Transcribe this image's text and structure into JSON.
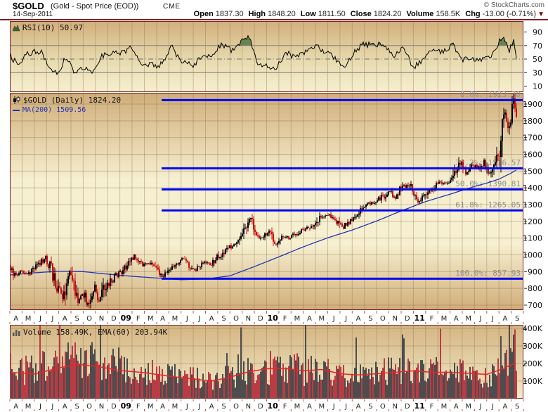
{
  "header": {
    "symbol": "$GOLD",
    "description": "(Gold - Spot Price (EOD))",
    "exchange": "CME",
    "copyright": "© StockCharts.com",
    "date": "14-Sep-2011",
    "quote": [
      {
        "label": "Open",
        "value": "1837.30"
      },
      {
        "label": "High",
        "value": "1848.20"
      },
      {
        "label": "Low",
        "value": "1811.50"
      },
      {
        "label": "Close",
        "value": "1824.20"
      },
      {
        "label": "Volume",
        "value": "158.5K"
      },
      {
        "label": "Chg",
        "value": "-13.00 (-0.71%)",
        "direction": "down"
      }
    ]
  },
  "colors": {
    "maroon": "#7a2323",
    "grid": "rgba(140,110,70,0.38)",
    "tick_red": "#bb5555",
    "fib_blue": "#0008ee",
    "ma_blue": "#2233bb",
    "candle_up": "#000000",
    "candle_down": "#cc0f0f",
    "vol_up": "#4d4d4d",
    "vol_down": "#bb3b44",
    "vol_ema": "#ee2222",
    "rsi_line": "#000000",
    "rsi_band": "#808080",
    "rsi_mid": "#66707a",
    "rsi_green": "#5a7d46",
    "rsi_red": "#9c4f3f",
    "label_gray": "#8e8e8e",
    "axis_text": "#111111"
  },
  "x_axis": {
    "months": [
      "A",
      "M",
      "J",
      "J",
      "A",
      "S",
      "O",
      "N",
      "D",
      "09",
      "F",
      "M",
      "A",
      "M",
      "J",
      "J",
      "A",
      "S",
      "O",
      "N",
      "D",
      "10",
      "F",
      "M",
      "A",
      "M",
      "J",
      "J",
      "A",
      "S",
      "O",
      "N",
      "D",
      "11",
      "F",
      "M",
      "A",
      "M",
      "J",
      "J",
      "A",
      "S"
    ],
    "year_labels": [
      "09",
      "10",
      "11"
    ],
    "span_note": "Apr 2008 - Sep 2011, daily",
    "data_end_month": 41.5
  },
  "chart_data": [
    {
      "type": "line",
      "title": "RSI(10)",
      "label": "RSI(10) 50.97",
      "current": 50.97,
      "overbought": 70,
      "midline": 50,
      "oversold": 30,
      "yticks": [
        90,
        70,
        50,
        30,
        10
      ],
      "ylim": [
        0,
        100
      ],
      "path": [
        [
          0,
          55
        ],
        [
          0.7,
          42
        ],
        [
          1.5,
          58
        ],
        [
          2.5,
          62
        ],
        [
          3.2,
          38
        ],
        [
          4,
          30
        ],
        [
          4.6,
          55
        ],
        [
          5.3,
          28
        ],
        [
          6,
          38
        ],
        [
          6.7,
          30
        ],
        [
          7.5,
          55
        ],
        [
          8.3,
          60
        ],
        [
          9,
          58
        ],
        [
          10,
          68
        ],
        [
          10.7,
          45
        ],
        [
          11.5,
          42
        ],
        [
          12.3,
          40
        ],
        [
          13.2,
          68
        ],
        [
          14,
          48
        ],
        [
          15,
          42
        ],
        [
          15.8,
          55
        ],
        [
          16.6,
          58
        ],
        [
          17.4,
          72
        ],
        [
          18.2,
          62
        ],
        [
          19,
          78
        ],
        [
          19.6,
          82
        ],
        [
          20.3,
          42
        ],
        [
          21,
          40
        ],
        [
          21.8,
          38
        ],
        [
          22.6,
          60
        ],
        [
          23.4,
          52
        ],
        [
          24.2,
          62
        ],
        [
          25,
          68
        ],
        [
          25.8,
          62
        ],
        [
          26.6,
          50
        ],
        [
          27.4,
          36
        ],
        [
          28.2,
          62
        ],
        [
          29,
          72
        ],
        [
          29.8,
          70
        ],
        [
          30.6,
          72
        ],
        [
          31.4,
          55
        ],
        [
          32.2,
          65
        ],
        [
          33,
          38
        ],
        [
          33.8,
          50
        ],
        [
          34.6,
          65
        ],
        [
          35.4,
          60
        ],
        [
          36.2,
          72
        ],
        [
          37,
          48
        ],
        [
          37.8,
          52
        ],
        [
          38.6,
          48
        ],
        [
          39.4,
          55
        ],
        [
          40,
          75
        ],
        [
          40.4,
          85
        ],
        [
          40.8,
          60
        ],
        [
          41.2,
          78
        ],
        [
          41.5,
          51
        ]
      ]
    },
    {
      "type": "candlestick",
      "title": "$GOLD (Daily)",
      "label": "$GOLD (Daily) 1824.20",
      "ma_label": "MA(200) 1509.56",
      "last_close": 1824.2,
      "ma200_current": 1509.56,
      "yticks": [
        1900,
        1800,
        1700,
        1600,
        1500,
        1400,
        1300,
        1200,
        1100,
        1000,
        900,
        800,
        700
      ],
      "ylim": [
        675,
        1967
      ],
      "fib_levels": [
        {
          "pct": "0.0%",
          "value": 1923.7,
          "label": "0.0%: 1923.70"
        },
        {
          "pct": "38.2%",
          "value": 1516.57,
          "label": "38.2%: 1516.57"
        },
        {
          "pct": "50.0%",
          "value": 1390.81,
          "label": "50.0%: 1390.81"
        },
        {
          "pct": "61.8%",
          "value": 1265.05,
          "label": "61.8%: 1265.05"
        },
        {
          "pct": "100.0%",
          "value": 857.93,
          "label": "100.0%: 857.93"
        }
      ],
      "fib_start_month": 12.41,
      "price_path": [
        [
          0,
          935
        ],
        [
          0.4,
          880
        ],
        [
          1.0,
          905
        ],
        [
          1.5,
          885
        ],
        [
          2.2,
          930
        ],
        [
          2.9,
          985
        ],
        [
          3.4,
          910
        ],
        [
          3.9,
          800
        ],
        [
          4.3,
          745
        ],
        [
          4.8,
          905
        ],
        [
          5.2,
          860
        ],
        [
          5.6,
          730
        ],
        [
          5.9,
          780
        ],
        [
          6.4,
          700
        ],
        [
          6.9,
          815
        ],
        [
          7.3,
          715
        ],
        [
          7.8,
          810
        ],
        [
          8.5,
          865
        ],
        [
          9.2,
          905
        ],
        [
          10.2,
          995
        ],
        [
          10.8,
          940
        ],
        [
          11.4,
          955
        ],
        [
          11.9,
          920
        ],
        [
          12.4,
          870
        ],
        [
          13.3,
          925
        ],
        [
          14.1,
          980
        ],
        [
          14.6,
          940
        ],
        [
          15.2,
          910
        ],
        [
          15.9,
          950
        ],
        [
          16.5,
          945
        ],
        [
          17.2,
          1000
        ],
        [
          17.9,
          1045
        ],
        [
          18.6,
          1060
        ],
        [
          19.2,
          1140
        ],
        [
          19.7,
          1215
        ],
        [
          20.1,
          1125
        ],
        [
          20.6,
          1100
        ],
        [
          21.2,
          1135
        ],
        [
          21.7,
          1055
        ],
        [
          22.3,
          1110
        ],
        [
          22.9,
          1100
        ],
        [
          23.6,
          1135
        ],
        [
          24.3,
          1160
        ],
        [
          24.9,
          1185
        ],
        [
          25.4,
          1235
        ],
        [
          26.0,
          1240
        ],
        [
          26.6,
          1215
        ],
        [
          27.2,
          1160
        ],
        [
          27.8,
          1200
        ],
        [
          28.5,
          1245
        ],
        [
          29.2,
          1300
        ],
        [
          29.9,
          1310
        ],
        [
          30.5,
          1345
        ],
        [
          31.0,
          1380
        ],
        [
          31.4,
          1340
        ],
        [
          31.9,
          1385
        ],
        [
          32.5,
          1420
        ],
        [
          33.0,
          1385
        ],
        [
          33.4,
          1320
        ],
        [
          34.0,
          1350
        ],
        [
          34.7,
          1415
        ],
        [
          35.3,
          1435
        ],
        [
          36.0,
          1430
        ],
        [
          36.5,
          1500
        ],
        [
          36.9,
          1560
        ],
        [
          37.3,
          1495
        ],
        [
          37.8,
          1530
        ],
        [
          38.3,
          1515
        ],
        [
          38.8,
          1550
        ],
        [
          39.2,
          1490
        ],
        [
          39.6,
          1545
        ],
        [
          40.0,
          1625
        ],
        [
          40.3,
          1760
        ],
        [
          40.55,
          1880
        ],
        [
          40.7,
          1720
        ],
        [
          40.9,
          1790
        ],
        [
          41.1,
          1870
        ],
        [
          41.25,
          1912
        ],
        [
          41.35,
          1845
        ],
        [
          41.45,
          1855
        ],
        [
          41.5,
          1824.2
        ]
      ],
      "ma_path": [
        [
          0,
          880
        ],
        [
          2,
          893
        ],
        [
          4,
          902
        ],
        [
          6,
          900
        ],
        [
          8,
          885
        ],
        [
          10,
          872
        ],
        [
          12,
          862
        ],
        [
          14,
          852
        ],
        [
          16,
          856
        ],
        [
          18,
          875
        ],
        [
          20,
          930
        ],
        [
          22,
          988
        ],
        [
          24,
          1048
        ],
        [
          26,
          1102
        ],
        [
          28,
          1148
        ],
        [
          30,
          1202
        ],
        [
          32,
          1262
        ],
        [
          34,
          1318
        ],
        [
          36,
          1362
        ],
        [
          38,
          1408
        ],
        [
          39,
          1428
        ],
        [
          40,
          1452
        ],
        [
          41,
          1488
        ],
        [
          41.5,
          1510
        ]
      ]
    },
    {
      "type": "bar",
      "title": "Volume",
      "label": "Volume 158.49K, EMA(60) 203.94K",
      "current": "158.49K",
      "current_value": 158.49,
      "ema_label": "EMA(60)",
      "ema_current": 203.94,
      "yticks": [
        {
          "label": "400K",
          "value": 400
        },
        {
          "label": "300K",
          "value": 300
        },
        {
          "label": "200K",
          "value": 200
        },
        {
          "label": "100K",
          "value": 100
        }
      ],
      "ylim": [
        0,
        420
      ],
      "ema_path": [
        [
          0,
          150
        ],
        [
          2,
          140
        ],
        [
          4,
          175
        ],
        [
          5.5,
          195
        ],
        [
          7,
          185
        ],
        [
          9,
          160
        ],
        [
          11,
          148
        ],
        [
          13,
          128
        ],
        [
          15,
          112
        ],
        [
          16.5,
          100
        ],
        [
          18,
          122
        ],
        [
          19.5,
          152
        ],
        [
          21,
          170
        ],
        [
          22.5,
          172
        ],
        [
          24,
          158
        ],
        [
          25.5,
          166
        ],
        [
          27,
          142
        ],
        [
          28.5,
          135
        ],
        [
          30,
          142
        ],
        [
          31.5,
          150
        ],
        [
          33,
          158
        ],
        [
          34.5,
          150
        ],
        [
          36,
          150
        ],
        [
          37.5,
          144
        ],
        [
          39,
          138
        ],
        [
          40,
          162
        ],
        [
          41,
          192
        ],
        [
          41.5,
          203.94
        ]
      ]
    }
  ]
}
